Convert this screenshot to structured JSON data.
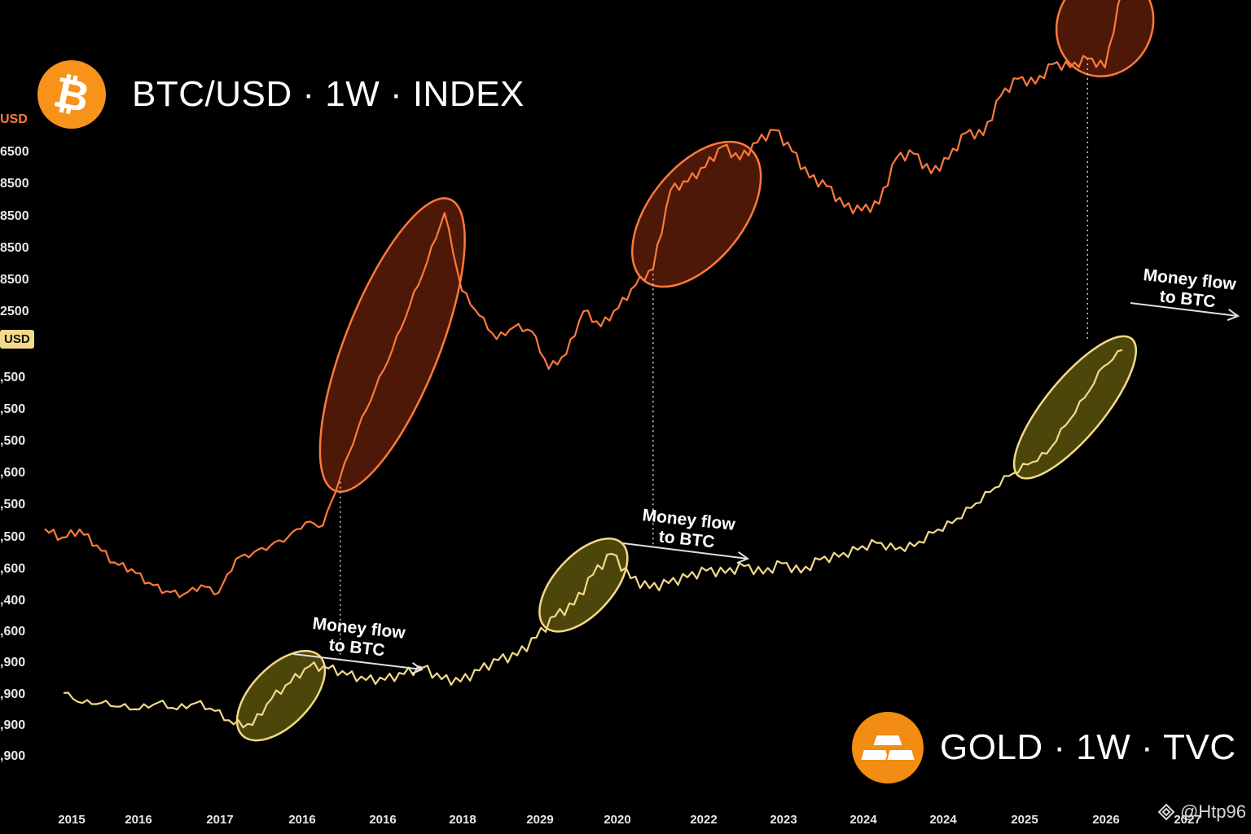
{
  "header": {
    "btc_title": "BTC/USD · 1W · INDEX",
    "gold_title": "GOLD · 1W · TVC",
    "btc_icon": "bitcoin-icon",
    "gold_icon": "gold-bars-icon"
  },
  "axis": {
    "btc_unit": "USD",
    "gold_unit": "USD",
    "y_labels": [
      "6500",
      "8500",
      "8500",
      "8500",
      "8500",
      "2500",
      ",500",
      ",500",
      ",500",
      ",600",
      ",500",
      ",500",
      ",600",
      ",400",
      ",600",
      ",900",
      ",900",
      ",900",
      ",900"
    ],
    "x_labels": [
      "2015",
      "2016",
      "2017",
      "2016",
      "2016",
      "2018",
      "2029",
      "2020",
      "2022",
      "2023",
      "2024",
      "2024",
      "2025",
      "2026",
      "2027"
    ]
  },
  "watermark": {
    "text": "@Htp96",
    "icon": "binance-icon"
  },
  "colors": {
    "background": "#000000",
    "btc_line": "#ff7a3c",
    "gold_line": "#f3d98a",
    "btc_ellipse_fill": "#5a1c08",
    "gold_ellipse_fill": "#5a520c",
    "annotation": "#ffffff"
  },
  "chart_data": {
    "type": "line",
    "title": "",
    "xlabel": "",
    "ylabel": "",
    "x_scale": "index",
    "series": [
      {
        "name": "BTC/USD · 1W · INDEX",
        "color": "#ff7a3c",
        "values": [
          0.17,
          0.15,
          0.16,
          0.13,
          0.1,
          0.09,
          0.07,
          0.06,
          0.06,
          0.08,
          0.07,
          0.13,
          0.14,
          0.15,
          0.16,
          0.18,
          0.17,
          0.25,
          0.33,
          0.4,
          0.47,
          0.55,
          0.63,
          0.72,
          0.59,
          0.55,
          0.51,
          0.53,
          0.52,
          0.45,
          0.47,
          0.54,
          0.51,
          0.54,
          0.58,
          0.61,
          0.75,
          0.77,
          0.8,
          0.84,
          0.82,
          0.85,
          0.87,
          0.83,
          0.78,
          0.76,
          0.72,
          0.71,
          0.72,
          0.8,
          0.81,
          0.78,
          0.81,
          0.86,
          0.86,
          0.93,
          0.96,
          0.95,
          0.98,
          0.97,
          0.98,
          0.96,
          1.09
        ]
      },
      {
        "name": "GOLD · 1W · TVC",
        "color": "#f3d98a",
        "values": [
          0.15,
          0.13,
          0.13,
          0.12,
          0.11,
          0.12,
          0.1,
          0.11,
          0.09,
          0.06,
          0.06,
          0.12,
          0.16,
          0.2,
          0.2,
          0.19,
          0.18,
          0.18,
          0.19,
          0.2,
          0.17,
          0.16,
          0.18,
          0.2,
          0.21,
          0.25,
          0.3,
          0.33,
          0.4,
          0.45,
          0.4,
          0.38,
          0.39,
          0.4,
          0.41,
          0.4,
          0.41,
          0.39,
          0.41,
          0.39,
          0.42,
          0.43,
          0.45,
          0.47,
          0.46,
          0.47,
          0.5,
          0.52,
          0.55,
          0.58,
          0.61,
          0.63,
          0.65,
          0.71,
          0.77,
          0.84,
          0.88
        ]
      }
    ],
    "highlights": [
      {
        "series": "BTC/USD · 1W · INDEX",
        "from": 17,
        "to": 23
      },
      {
        "series": "BTC/USD · 1W · INDEX",
        "from": 35,
        "to": 40
      },
      {
        "series": "BTC/USD · 1W · INDEX",
        "from": 60,
        "to": 62
      },
      {
        "series": "GOLD · 1W · TVC",
        "from": 10,
        "to": 13
      },
      {
        "series": "GOLD · 1W · TVC",
        "from": 26,
        "to": 29
      },
      {
        "series": "GOLD · 1W · TVC",
        "from": 51,
        "to": 56
      }
    ],
    "annotations": [
      {
        "text": "Money flow to BTC",
        "line1": "Money flow",
        "line2": "to BTC"
      },
      {
        "text": "Money flow to BTC",
        "line1": "Money flow",
        "line2": "to BTC"
      },
      {
        "text": "Money flow to BTC",
        "line1": "Money flow",
        "line2": "to BTC"
      }
    ],
    "grid": false,
    "legend": "none"
  }
}
